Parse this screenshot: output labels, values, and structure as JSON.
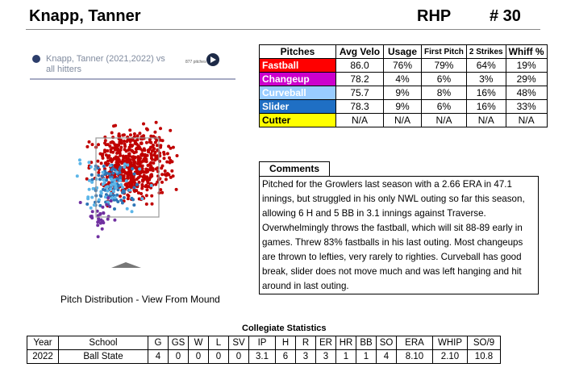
{
  "player": {
    "name": "Knapp, Tanner",
    "hand": "RHP",
    "number": "# 30"
  },
  "pitch_plot": {
    "header_text": "Knapp, Tanner (2021,2022) vs all hitters",
    "pitch_count": "877 pitches",
    "caption": "Pitch Distribution - View From Mound",
    "colors": {
      "fastball": "#c00000",
      "offspeed_blue": "#2e75b6",
      "light_blue": "#5bb5e8",
      "purple": "#7030a0"
    }
  },
  "pitch_table": {
    "headers": [
      "Pitches",
      "Avg Velo",
      "Usage",
      "First Pitch",
      "2 Strikes",
      "Whiff %"
    ],
    "rows": [
      {
        "name": "Fastball",
        "color": "#ff0000",
        "text_color": "#ffffff",
        "values": [
          "86.0",
          "76%",
          "79%",
          "64%",
          "19%"
        ]
      },
      {
        "name": "Changeup",
        "color": "#cc00cc",
        "text_color": "#ffffff",
        "values": [
          "78.2",
          "4%",
          "6%",
          "3%",
          "29%"
        ]
      },
      {
        "name": "Curveball",
        "color": "#99ccff",
        "text_color": "#ffffff",
        "values": [
          "75.7",
          "9%",
          "8%",
          "16%",
          "48%"
        ]
      },
      {
        "name": "Slider",
        "color": "#1f6fc4",
        "text_color": "#ffffff",
        "values": [
          "78.3",
          "9%",
          "6%",
          "16%",
          "33%"
        ]
      },
      {
        "name": "Cutter",
        "color": "#ffff00",
        "text_color": "#000000",
        "values": [
          "N/A",
          "N/A",
          "N/A",
          "N/A",
          "N/A"
        ]
      }
    ]
  },
  "comments": {
    "title": "Comments",
    "text": "Pitched for the Growlers last season with a 2.66 ERA in 47.1 innings, but struggled in his only NWL outing so far this season, allowing 6 H and 5 BB in 3.1 innings against Traverse. Overwhelmingly throws the fastball, which will sit 88-89 early in games. Threw 83% fastballs in his last outing. Most changeups are thrown to lefties, very rarely to righties. Curveball has good break, slider does not move much and was left hanging and hit around in last outing."
  },
  "stats": {
    "title": "Collegiate Statistics",
    "headers": [
      "Year",
      "School",
      "G",
      "GS",
      "W",
      "L",
      "SV",
      "IP",
      "H",
      "R",
      "ER",
      "HR",
      "BB",
      "SO",
      "ERA",
      "WHIP",
      "SO/9"
    ],
    "rows": [
      [
        "2022",
        "Ball State",
        "4",
        "0",
        "0",
        "0",
        "0",
        "3.1",
        "6",
        "3",
        "3",
        "1",
        "1",
        "4",
        "8.10",
        "2.10",
        "10.8"
      ]
    ]
  }
}
